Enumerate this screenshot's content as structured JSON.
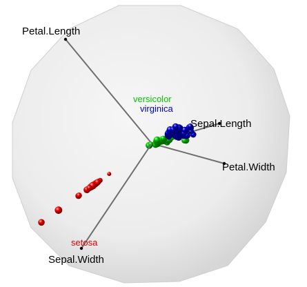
{
  "chart_data": {
    "type": "scatter",
    "title": "",
    "grid": false,
    "axes": [
      {
        "name": "Petal.Length",
        "color": "#000000"
      },
      {
        "name": "Sepal.Length",
        "color": "#000000"
      },
      {
        "name": "Petal.Width",
        "color": "#000000"
      },
      {
        "name": "Sepal.Width",
        "color": "#000000"
      }
    ],
    "series": [
      {
        "name": "setosa",
        "color": "#e00000",
        "points": [
          [
            -18.4,
            -3.2,
            1.4
          ],
          [
            -17.8,
            -3.4,
            1.2
          ],
          [
            -19.8,
            -3.5,
            1.4
          ],
          [
            -21.3,
            -3.5,
            1.3
          ],
          [
            -20.8,
            -3.9,
            1.1
          ],
          [
            -20.2,
            -3.1,
            1.4
          ],
          [
            -21.2,
            -4.1,
            1.2
          ],
          [
            -19.6,
            -2.8,
            1.6
          ],
          [
            -21.0,
            -2.9,
            1.1
          ],
          [
            -22.3,
            -3.3,
            1.6
          ],
          [
            -19.6,
            -4.0,
            1.4
          ],
          [
            -19.1,
            -3.9,
            1.2
          ],
          [
            -20.0,
            -4.3,
            1.4
          ],
          [
            -22.1,
            -3.6,
            1.3
          ],
          [
            -20.4,
            -2.3,
            1.8
          ],
          [
            -18.7,
            -2.3,
            1.5
          ],
          [
            -20.7,
            -4.4,
            1.5
          ],
          [
            -21.4,
            -2.4,
            1.3
          ],
          [
            -21.0,
            -3.7,
            1.7
          ],
          [
            -19.8,
            -4.2,
            1.4
          ],
          [
            -20.1,
            -2.6,
            1.4
          ],
          [
            -20.1,
            -4.4,
            1.5
          ],
          [
            -20.3,
            -3.4,
            1.6
          ],
          [
            -20.9,
            -3.2,
            1.3
          ],
          [
            -18.9,
            -2.5,
            1.6
          ],
          [
            -19.0,
            -3.8,
            1.3
          ],
          [
            -19.2,
            -4.0,
            1.1
          ],
          [
            -20.6,
            -4.3,
            1.3
          ],
          [
            -21.0,
            -4.1,
            1.4
          ],
          [
            -19.6,
            -3.4,
            1.2
          ],
          [
            -21.1,
            -2.8,
            1.3
          ],
          [
            -21.5,
            -2.2,
            1.4
          ],
          [
            -22.4,
            -4.1,
            1.6
          ],
          [
            -19.2,
            -3.4,
            1.1
          ],
          [
            -20.2,
            -4.1,
            1.5
          ],
          [
            -21.0,
            -4.0,
            1.3
          ],
          [
            -21.6,
            -3.8,
            1.2
          ],
          [
            -20.2,
            -3.6,
            1.1
          ],
          [
            -19.7,
            -2.8,
            1.6
          ],
          [
            -20.1,
            -4.1,
            1.7
          ],
          [
            -20.4,
            -3.3,
            1.5
          ],
          [
            -21.6,
            -3.7,
            1.5
          ],
          [
            -20.0,
            -3.6,
            1.2
          ],
          [
            -20.0,
            -4.3,
            1.2
          ],
          [
            -19.4,
            -4.2,
            1.6
          ],
          [
            -14.7,
            -7.5,
            1.0
          ],
          [
            -32.2,
            -6.6,
            1.8
          ],
          [
            -25.1,
            -2.8,
            1.4
          ],
          [
            -25.3,
            -5.8,
            1.5
          ],
          [
            -38.1,
            -8.0,
            1.6
          ]
        ]
      },
      {
        "name": "versicolor",
        "color": "#00c800",
        "points": [
          [
            5.3,
            0.4,
            1.5
          ],
          [
            4.2,
            1.2,
            1.3
          ],
          [
            4.0,
            0.9,
            1.4
          ],
          [
            2.0,
            -0.1,
            1.1
          ],
          [
            2.1,
            0.4,
            1.4
          ],
          [
            3.9,
            1.3,
            1.0
          ],
          [
            3.1,
            0.8,
            1.6
          ],
          [
            2.0,
            -0.1,
            1.6
          ],
          [
            1.7,
            0.6,
            1.4
          ],
          [
            4.3,
            0.6,
            1.2
          ],
          [
            2.4,
            0.6,
            1.6
          ],
          [
            5.3,
            1.4,
            1.6
          ],
          [
            -0.9,
            -0.6,
            1.7
          ],
          [
            1.3,
            -0.3,
            1.7
          ],
          [
            1.4,
            1.0,
            1.2
          ],
          [
            -0.7,
            -0.2,
            1.1
          ],
          [
            4.6,
            1.0,
            1.2
          ],
          [
            4.9,
            1.1,
            1.1
          ],
          [
            6.9,
            1.9,
            1.2
          ],
          [
            -1.0,
            0.0,
            1.3
          ],
          [
            5.6,
            1.1,
            1.7
          ],
          [
            4.7,
            1.0,
            1.5
          ],
          [
            1.9,
            0.4,
            1.6
          ],
          [
            4.1,
            1.6,
            1.2
          ],
          [
            4.4,
            1.5,
            1.5
          ],
          [
            5.2,
            1.0,
            1.4
          ],
          [
            1.3,
            0.6,
            1.2
          ],
          [
            3.5,
            1.2,
            1.3
          ],
          [
            4.0,
            1.5,
            1.6
          ],
          [
            2.4,
            0.7,
            1.1
          ],
          [
            6.1,
            1.3,
            1.6
          ],
          [
            3.8,
            1.3,
            1.4
          ],
          [
            1.9,
            0.3,
            1.7
          ],
          [
            2.1,
            1.1,
            1.3
          ],
          [
            5.7,
            1.5,
            1.4
          ],
          [
            5.3,
            1.4,
            1.6
          ],
          [
            2.7,
            0.9,
            1.4
          ],
          [
            2.3,
            0.6,
            1.2
          ],
          [
            1.8,
            1.3,
            1.6
          ],
          [
            2.2,
            1.1,
            1.4
          ],
          [
            3.9,
            1.8,
            1.2
          ],
          [
            4.2,
            1.5,
            1.5
          ],
          [
            -0.3,
            0.1,
            1.2
          ],
          [
            3.2,
            0.7,
            1.6
          ],
          [
            3.9,
            1.4,
            1.4
          ],
          [
            2.1,
            0.6,
            1.4
          ],
          [
            3.5,
            1.6,
            1.2
          ],
          [
            2.7,
            0.8,
            1.3
          ],
          [
            11.8,
            1.1,
            1.6
          ],
          [
            11.3,
            1.1,
            1.5
          ]
        ]
      },
      {
        "name": "virginica",
        "color": "#0000c8",
        "points": [
          [
            6.3,
            3.6,
            1.5
          ],
          [
            7.2,
            3.8,
            1.6
          ],
          [
            8.4,
            2.2,
            1.3
          ],
          [
            9.1,
            4.7,
            1.4
          ],
          [
            6.5,
            2.9,
            1.4
          ],
          [
            9.3,
            2.1,
            1.6
          ],
          [
            7.5,
            4.9,
            1.3
          ],
          [
            8.3,
            4.7,
            1.5
          ],
          [
            9.6,
            3.5,
            1.6
          ],
          [
            8.8,
            2.7,
            1.5
          ],
          [
            9.0,
            4.4,
            1.5
          ],
          [
            7.9,
            3.2,
            1.4
          ],
          [
            7.2,
            4.7,
            1.5
          ],
          [
            5.6,
            3.7,
            1.4
          ],
          [
            9.3,
            5.4,
            1.3
          ],
          [
            9.2,
            2.0,
            1.3
          ],
          [
            5.6,
            2.8,
            1.6
          ],
          [
            7.2,
            4.4,
            1.4
          ],
          [
            5.9,
            2.3,
            1.4
          ],
          [
            9.2,
            3.9,
            1.4
          ],
          [
            5.6,
            3.3,
            1.6
          ],
          [
            9.3,
            4.1,
            1.6
          ],
          [
            8.3,
            2.6,
            1.5
          ],
          [
            9.0,
            2.2,
            1.5
          ],
          [
            9.9,
            5.4,
            1.3
          ],
          [
            10.6,
            3.2,
            1.4
          ],
          [
            7.6,
            2.8,
            1.3
          ],
          [
            6.3,
            4.8,
            1.6
          ],
          [
            6.5,
            3.1,
            1.5
          ],
          [
            8.7,
            4.9,
            1.3
          ],
          [
            6.2,
            4.3,
            1.6
          ],
          [
            9.4,
            3.1,
            1.5
          ],
          [
            9.4,
            5.5,
            1.6
          ],
          [
            7.3,
            4.5,
            1.5
          ],
          [
            11.1,
            3.6,
            1.5
          ],
          [
            7.4,
            4.9,
            1.4
          ],
          [
            8.2,
            5.8,
            1.6
          ],
          [
            6.5,
            3.6,
            1.5
          ],
          [
            8.3,
            5.9,
            1.4
          ],
          [
            11.7,
            4.6,
            1.6
          ],
          [
            11.1,
            2.7,
            1.6
          ],
          [
            12.3,
            2.7,
            1.4
          ],
          [
            11.3,
            4.7,
            1.5
          ],
          [
            12.0,
            2.5,
            1.4
          ],
          [
            14.3,
            3.1,
            1.5
          ],
          [
            13.3,
            5.9,
            1.4
          ],
          [
            13.6,
            5.3,
            1.3
          ],
          [
            13.6,
            4.2,
            1.4
          ],
          [
            12.9,
            5.6,
            1.5
          ],
          [
            12.1,
            2.8,
            1.5
          ]
        ]
      }
    ]
  }
}
